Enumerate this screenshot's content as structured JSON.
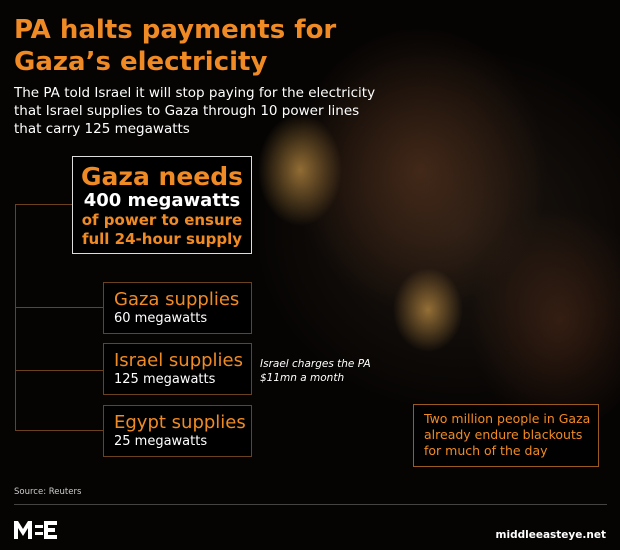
{
  "title": [
    "PA halts payments for",
    "Gaza’s electricity"
  ],
  "subtitle": [
    "The PA told Israel it will stop paying for the electricity",
    "that Israel supplies to Gaza through 10 power lines",
    "that carry 125 megawatts"
  ],
  "needs": {
    "heading": "Gaza needs",
    "value": "400 megawatts",
    "line1": "of power to ensure",
    "line2": "full 24-hour supply"
  },
  "supplies": [
    {
      "label": "Gaza supplies",
      "value": "60 megawatts"
    },
    {
      "label": "Israel supplies",
      "value": "125 megawatts"
    },
    {
      "label": "Egypt supplies",
      "value": "25 megawatts"
    }
  ],
  "israel_note": [
    "Israel charges the PA",
    "$11mn a month"
  ],
  "blackout_note": [
    "Two million people in Gaza",
    "already endure blackouts",
    "for much of the day"
  ],
  "source": "Source: Reuters",
  "logo": "MEE",
  "site": "middleeasteye.net",
  "colors": {
    "accent": "#f08a24",
    "background": "#050302",
    "text": "#ffffff"
  }
}
